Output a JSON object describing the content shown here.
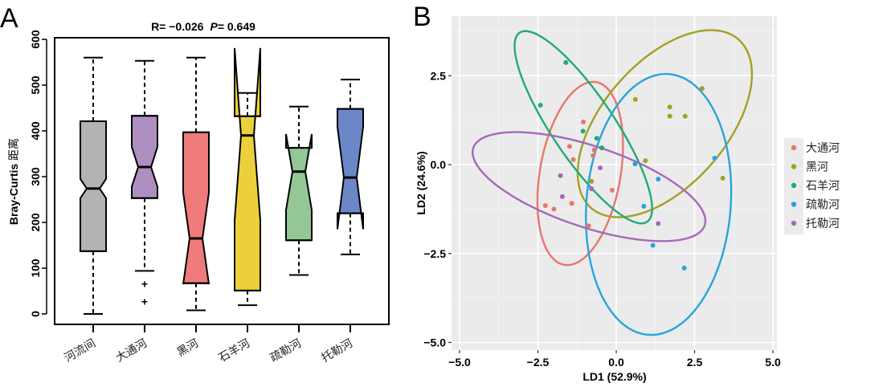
{
  "panelA": {
    "letter": "A",
    "chart_data": {
      "type": "boxplot",
      "title_r_label": "R= ",
      "title_r_value": "−0.026",
      "title_p_label": "P",
      "title_p_value": "= 0.649",
      "ylabel_latin": "Bray-Curtis ",
      "ylabel_cjk": "距离",
      "xlabel": "",
      "ylim": [
        0,
        600
      ],
      "yticks": [
        0,
        100,
        200,
        300,
        400,
        500,
        600
      ],
      "categories": [
        "河流间",
        "大通河",
        "黑河",
        "石羊河",
        "疏勒河",
        "托勒河"
      ],
      "notched": true,
      "boxes": [
        {
          "name": "河流间",
          "color": "#b3b3b3",
          "whisker_low": 0,
          "q1": 137,
          "notch_low": 253,
          "median": 274,
          "notch_high": 295,
          "q3": 421,
          "whisker_high": 560,
          "outliers": []
        },
        {
          "name": "大通河",
          "color": "#ad8fc2",
          "whisker_low": 94,
          "q1": 253,
          "notch_low": 278,
          "median": 321,
          "notch_high": 365,
          "q3": 433,
          "whisker_high": 553,
          "outliers": [
            66,
            27
          ]
        },
        {
          "name": "黑河",
          "color": "#ef7b7b",
          "whisker_low": 8,
          "q1": 67,
          "notch_low": 65,
          "median": 165,
          "notch_high": 265,
          "q3": 397,
          "whisker_high": 560,
          "outliers": []
        },
        {
          "name": "石羊河",
          "color": "#ecd03b",
          "whisker_low": 19,
          "q1": 51,
          "notch_low": 204,
          "median": 390,
          "notch_high": 581,
          "q3": 432,
          "whisker_high": 483,
          "outliers": []
        },
        {
          "name": "疏勒河",
          "color": "#93c796",
          "whisker_low": 85,
          "q1": 161,
          "notch_low": 227,
          "median": 311,
          "notch_high": 393,
          "q3": 363,
          "whisker_high": 453,
          "outliers": []
        },
        {
          "name": "托勒河",
          "color": "#6b87c8",
          "whisker_low": 130,
          "q1": 220,
          "notch_low": 185,
          "median": 298,
          "notch_high": 409,
          "q3": 448,
          "whisker_high": 512,
          "outliers": []
        }
      ]
    }
  },
  "panelB": {
    "letter": "B",
    "chart_data": {
      "type": "scatter",
      "xlabel": "LD1 (52.9%)",
      "ylabel": "LD2 (24.6%)",
      "xlim": [
        -5.25,
        5.1
      ],
      "ylim": [
        -5.25,
        4.2
      ],
      "xticks": [
        -5.0,
        -2.5,
        0.0,
        2.5,
        5.0
      ],
      "xtick_labels": [
        "−5.0",
        "−2.5",
        "0.0",
        "2.5",
        "5.0"
      ],
      "yticks": [
        -5.0,
        -2.5,
        0.0,
        2.5
      ],
      "ytick_labels": [
        "−5.0",
        "−2.5",
        "0.0",
        "2.5"
      ],
      "grid": true,
      "background": "#ebebeb",
      "legend_position": "right",
      "series": [
        {
          "name": "大通河",
          "color": "#e8756b",
          "points": [
            [
              -1.05,
              1.2
            ],
            [
              -1.49,
              0.51
            ],
            [
              -0.7,
              0.41
            ],
            [
              -0.74,
              0.25
            ],
            [
              -1.37,
              0.14
            ],
            [
              -0.13,
              -0.72
            ],
            [
              -1.42,
              -1.09
            ],
            [
              -2.26,
              -1.15
            ],
            [
              -1.99,
              -1.25
            ],
            [
              -0.88,
              -1.72
            ]
          ],
          "ellipse": {
            "cx": -1.15,
            "cy": -0.25,
            "a": 2.62,
            "b": 1.28,
            "angle_deg": 78
          }
        },
        {
          "name": "黑河",
          "color": "#a3a023",
          "points": [
            [
              0.61,
              1.83
            ],
            [
              2.74,
              2.14
            ],
            [
              1.71,
              1.62
            ],
            [
              1.71,
              1.36
            ],
            [
              2.2,
              1.36
            ],
            [
              0.93,
              0.11
            ],
            [
              3.4,
              -0.38
            ],
            [
              -0.79,
              -0.47
            ]
          ],
          "ellipse": {
            "cx": 1.55,
            "cy": 1.15,
            "a": 3.35,
            "b": 1.85,
            "angle_deg": 42
          }
        },
        {
          "name": "石羊河",
          "color": "#23a976",
          "points": [
            [
              -1.61,
              2.87
            ],
            [
              -2.42,
              1.67
            ],
            [
              -1.06,
              0.94
            ],
            [
              -0.62,
              0.74
            ],
            [
              -0.46,
              0.47
            ]
          ],
          "ellipse": {
            "cx": -1.05,
            "cy": 1.05,
            "a": 3.35,
            "b": 0.95,
            "angle_deg": -52
          }
        },
        {
          "name": "疏勒河",
          "color": "#28a3dc",
          "points": [
            [
              0.6,
              0.02
            ],
            [
              3.14,
              0.18
            ],
            [
              1.34,
              -0.41
            ],
            [
              0.88,
              -1.17
            ],
            [
              1.17,
              -2.27
            ],
            [
              2.17,
              -2.91
            ]
          ],
          "ellipse": {
            "cx": 1.35,
            "cy": -1.12,
            "a": 3.68,
            "b": 2.3,
            "angle_deg": 84
          }
        },
        {
          "name": "托勒河",
          "color": "#a568b8",
          "points": [
            [
              -0.51,
              -0.09
            ],
            [
              -1.78,
              -0.31
            ],
            [
              -0.79,
              -0.68
            ],
            [
              -1.72,
              -0.9
            ],
            [
              1.34,
              -1.66
            ]
          ],
          "ellipse": {
            "cx": -0.87,
            "cy": -0.62,
            "a": 3.85,
            "b": 1.15,
            "angle_deg": -16
          }
        }
      ]
    }
  }
}
